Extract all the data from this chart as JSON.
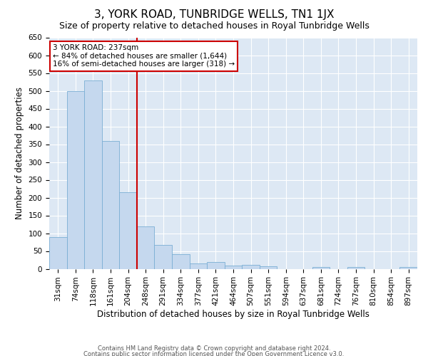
{
  "title": "3, YORK ROAD, TUNBRIDGE WELLS, TN1 1JX",
  "subtitle": "Size of property relative to detached houses in Royal Tunbridge Wells",
  "xlabel": "Distribution of detached houses by size in Royal Tunbridge Wells",
  "ylabel": "Number of detached properties",
  "categories": [
    "31sqm",
    "74sqm",
    "118sqm",
    "161sqm",
    "204sqm",
    "248sqm",
    "291sqm",
    "334sqm",
    "377sqm",
    "421sqm",
    "464sqm",
    "507sqm",
    "551sqm",
    "594sqm",
    "637sqm",
    "681sqm",
    "724sqm",
    "767sqm",
    "810sqm",
    "854sqm",
    "897sqm"
  ],
  "values": [
    90,
    500,
    530,
    360,
    215,
    120,
    68,
    42,
    16,
    19,
    10,
    11,
    8,
    0,
    0,
    5,
    0,
    5,
    0,
    0,
    5
  ],
  "bar_color": "#c5d8ee",
  "bar_edgecolor": "#7aaed4",
  "vline_color": "#cc0000",
  "ylim": [
    0,
    650
  ],
  "yticks": [
    0,
    50,
    100,
    150,
    200,
    250,
    300,
    350,
    400,
    450,
    500,
    550,
    600,
    650
  ],
  "annotation_text": "3 YORK ROAD: 237sqm\n← 84% of detached houses are smaller (1,644)\n16% of semi-detached houses are larger (318) →",
  "annotation_box_color": "#ffffff",
  "annotation_box_edgecolor": "#cc0000",
  "footer1": "Contains HM Land Registry data © Crown copyright and database right 2024.",
  "footer2": "Contains public sector information licensed under the Open Government Licence v3.0.",
  "title_fontsize": 11,
  "subtitle_fontsize": 9,
  "tick_fontsize": 7.5,
  "ylabel_fontsize": 8.5,
  "xlabel_fontsize": 8.5,
  "annotation_fontsize": 7.5,
  "footer_fontsize": 6
}
